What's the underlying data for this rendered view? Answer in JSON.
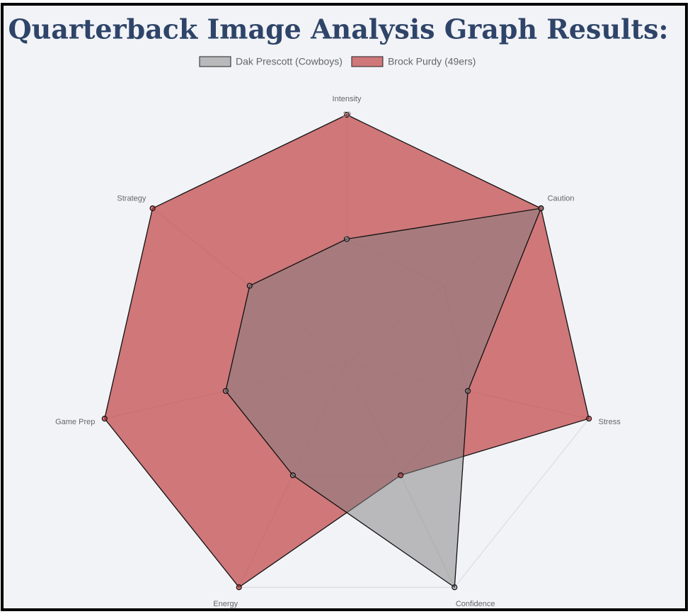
{
  "chart_data": {
    "type": "radar",
    "title": "Quarterback Image Analysis Graph Results:",
    "categories": [
      "Intensity",
      "Caution",
      "Stress",
      "Confidence",
      "Energy",
      "Game Prep",
      "Strategy"
    ],
    "series": [
      {
        "name": "Dak Prescott (Cowboys)",
        "color": "rgba(128,128,130,0.5)",
        "values": [
          5,
          10,
          5,
          10,
          5,
          5,
          5
        ]
      },
      {
        "name": "Brock Purdy (49ers)",
        "color": "rgba(190,60,60,0.68)",
        "values": [
          10,
          10,
          10,
          5,
          10,
          10,
          10
        ]
      }
    ],
    "rlim": [
      0,
      10
    ],
    "rticks": [
      5,
      10
    ],
    "grid": true
  }
}
